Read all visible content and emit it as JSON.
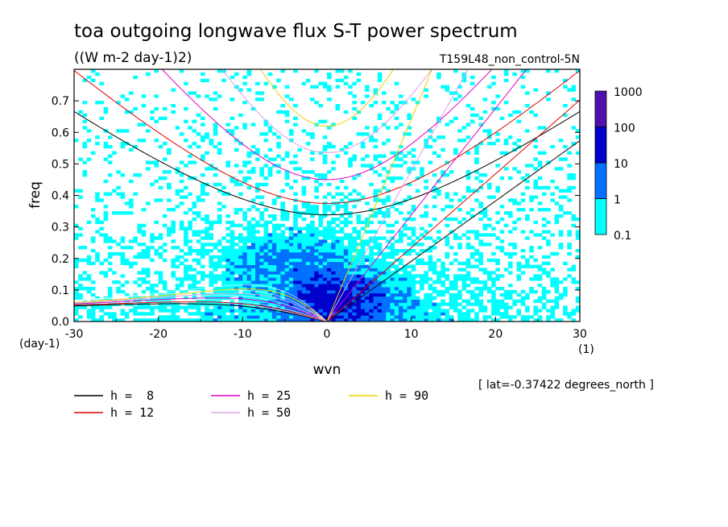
{
  "chart_data": {
    "type": "heatmap",
    "title": "toa outgoing longwave flux S-T power spectrum",
    "subtitle": "((W m-2 day-1)2)",
    "run_label": "T159L48_non_control-5N",
    "xlabel": "wvn",
    "ylabel": "freq",
    "x_unit": "(1)",
    "y_unit": "(day-1)",
    "xlim": [
      -30,
      30
    ],
    "ylim": [
      0,
      0.8
    ],
    "x_ticks": [
      -30,
      -20,
      -10,
      0,
      10,
      20,
      30
    ],
    "x_tick_labels": [
      "-30",
      "-20",
      "-10",
      "0",
      "10",
      "20",
      "30"
    ],
    "y_ticks": [
      0,
      0.1,
      0.2,
      0.3,
      0.4,
      0.5,
      0.6,
      0.7
    ],
    "y_tick_labels": [
      "0.0",
      "0.1",
      "0.2",
      "0.3",
      "0.4",
      "0.5",
      "0.6",
      "0.7"
    ],
    "colorbar": {
      "levels": [
        0.1,
        1,
        10,
        100,
        1000
      ],
      "level_labels": [
        "0.1",
        "1",
        "10",
        "100",
        "1000"
      ],
      "colors": [
        "#00ffff",
        "#0070ff",
        "#0000cc",
        "#5010b0"
      ]
    },
    "footnote": "[ lat=-0.37422 degrees_north ]",
    "series": [
      {
        "name": "h =  8",
        "h": 8,
        "color": "#000000"
      },
      {
        "name": "h = 12",
        "h": 12,
        "color": "#e00000"
      },
      {
        "name": "h = 25",
        "h": 25,
        "color": "#e000c0"
      },
      {
        "name": "h = 50",
        "h": 50,
        "color": "#e0a0e8"
      },
      {
        "name": "h = 90",
        "h": 90,
        "color": "#f0d000"
      }
    ]
  }
}
